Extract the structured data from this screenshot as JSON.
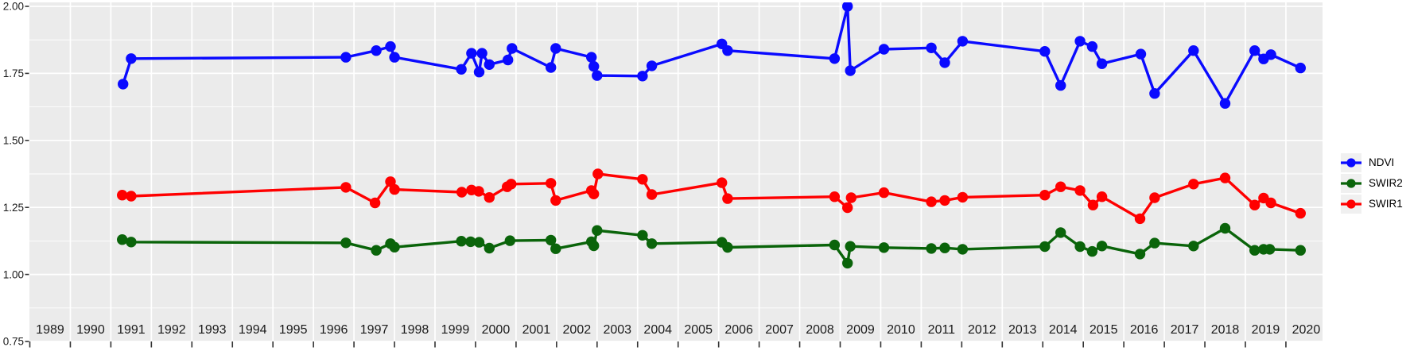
{
  "figure": {
    "title": "",
    "background_color": "#FFFFFF",
    "panel_background_color": "#EBEBEB",
    "grid_color": "#FFFFFF",
    "axis_text_color": "#1A1A1A",
    "tick_mark_color": "#333333",
    "legend_key_background": "#F0F0F0"
  },
  "legend": {
    "position": "right",
    "items": [
      {
        "label": "NDVI",
        "color": "#0A0AFF"
      },
      {
        "label": "SWIR2",
        "color": "#0A640A"
      },
      {
        "label": "SWIR1",
        "color": "#FF0000"
      }
    ]
  },
  "chart_data": {
    "type": "line",
    "title": "",
    "xlabel": "",
    "ylabel": "",
    "xlim": [
      1989,
      2021
    ],
    "ylim": [
      0.75,
      2.0
    ],
    "x_tick_labels": [
      "1989",
      "1990",
      "1991",
      "1992",
      "1993",
      "1994",
      "1995",
      "1996",
      "1997",
      "1998",
      "1999",
      "2000",
      "2001",
      "2002",
      "2003",
      "2004",
      "2005",
      "2006",
      "2007",
      "2008",
      "2009",
      "2010",
      "2011",
      "2012",
      "2013",
      "2014",
      "2015",
      "2016",
      "2017",
      "2018",
      "2019",
      "2020"
    ],
    "y_tick_labels": [
      "0.75",
      "1.00",
      "1.25",
      "1.50",
      "1.75",
      "2.00"
    ],
    "y_major_ticks": [
      0.75,
      1.0,
      1.25,
      1.5,
      1.75,
      2.0
    ],
    "y_minor_ticks": [
      0.875,
      1.125,
      1.375,
      1.625,
      1.875
    ],
    "grid": "horizontal major+minor white gridlines; vertical white gridlines at year boundaries; x labels centered within year bands",
    "legend_position": "right",
    "marker": "filled circle",
    "series": [
      {
        "name": "NDVI",
        "color": "#0A0AFF",
        "points": [
          [
            1991.3,
            1.71
          ],
          [
            1991.5,
            1.805
          ],
          [
            1996.8,
            1.81
          ],
          [
            1997.55,
            1.835
          ],
          [
            1997.9,
            1.85
          ],
          [
            1998.0,
            1.81
          ],
          [
            1999.65,
            1.765
          ],
          [
            1999.9,
            1.825
          ],
          [
            2000.09,
            1.755
          ],
          [
            2000.16,
            1.825
          ],
          [
            2000.34,
            1.783
          ],
          [
            2000.8,
            1.8
          ],
          [
            2000.9,
            1.843
          ],
          [
            2001.86,
            1.772
          ],
          [
            2001.98,
            1.843
          ],
          [
            2002.86,
            1.81
          ],
          [
            2002.92,
            1.776
          ],
          [
            2003.0,
            1.742
          ],
          [
            2004.12,
            1.74
          ],
          [
            2004.35,
            1.778
          ],
          [
            2006.08,
            1.86
          ],
          [
            2006.22,
            1.835
          ],
          [
            2008.86,
            1.805
          ],
          [
            2009.18,
            2.0
          ],
          [
            2009.25,
            1.76
          ],
          [
            2010.08,
            1.84
          ],
          [
            2011.25,
            1.845
          ],
          [
            2011.58,
            1.79
          ],
          [
            2012.02,
            1.87
          ],
          [
            2014.05,
            1.832
          ],
          [
            2014.44,
            1.705
          ],
          [
            2014.92,
            1.87
          ],
          [
            2015.22,
            1.85
          ],
          [
            2015.46,
            1.786
          ],
          [
            2016.42,
            1.822
          ],
          [
            2016.76,
            1.675
          ],
          [
            2017.72,
            1.835
          ],
          [
            2018.5,
            1.638
          ],
          [
            2019.23,
            1.835
          ],
          [
            2019.45,
            1.804
          ],
          [
            2019.63,
            1.82
          ],
          [
            2020.36,
            1.77
          ]
        ]
      },
      {
        "name": "SWIR2",
        "color": "#0A640A",
        "points": [
          [
            1991.28,
            1.13
          ],
          [
            1991.5,
            1.121
          ],
          [
            1996.8,
            1.118
          ],
          [
            1997.55,
            1.09
          ],
          [
            1997.9,
            1.115
          ],
          [
            1998.0,
            1.102
          ],
          [
            1999.65,
            1.124
          ],
          [
            1999.88,
            1.122
          ],
          [
            2000.09,
            1.12
          ],
          [
            2000.34,
            1.098
          ],
          [
            2000.85,
            1.126
          ],
          [
            2001.86,
            1.128
          ],
          [
            2001.98,
            1.096
          ],
          [
            2002.86,
            1.122
          ],
          [
            2002.92,
            1.107
          ],
          [
            2003.0,
            1.164
          ],
          [
            2004.12,
            1.146
          ],
          [
            2004.35,
            1.115
          ],
          [
            2006.08,
            1.12
          ],
          [
            2006.22,
            1.101
          ],
          [
            2008.86,
            1.11
          ],
          [
            2009.18,
            1.042
          ],
          [
            2009.25,
            1.105
          ],
          [
            2010.08,
            1.1
          ],
          [
            2011.25,
            1.097
          ],
          [
            2011.58,
            1.099
          ],
          [
            2012.02,
            1.094
          ],
          [
            2014.05,
            1.104
          ],
          [
            2014.44,
            1.156
          ],
          [
            2014.92,
            1.104
          ],
          [
            2015.22,
            1.086
          ],
          [
            2015.46,
            1.106
          ],
          [
            2016.4,
            1.076
          ],
          [
            2016.76,
            1.117
          ],
          [
            2017.72,
            1.106
          ],
          [
            2018.5,
            1.172
          ],
          [
            2019.23,
            1.09
          ],
          [
            2019.45,
            1.094
          ],
          [
            2019.6,
            1.094
          ],
          [
            2020.36,
            1.09
          ]
        ]
      },
      {
        "name": "SWIR1",
        "color": "#FF0000",
        "points": [
          [
            1991.28,
            1.296
          ],
          [
            1991.5,
            1.292
          ],
          [
            1996.8,
            1.325
          ],
          [
            1997.52,
            1.267
          ],
          [
            1997.9,
            1.346
          ],
          [
            1998.0,
            1.317
          ],
          [
            1999.66,
            1.307
          ],
          [
            1999.9,
            1.315
          ],
          [
            2000.08,
            1.31
          ],
          [
            2000.34,
            1.287
          ],
          [
            2000.78,
            1.327
          ],
          [
            2000.88,
            1.337
          ],
          [
            2001.86,
            1.34
          ],
          [
            2001.98,
            1.276
          ],
          [
            2002.86,
            1.313
          ],
          [
            2002.92,
            1.3
          ],
          [
            2003.02,
            1.375
          ],
          [
            2004.12,
            1.355
          ],
          [
            2004.35,
            1.298
          ],
          [
            2006.08,
            1.342
          ],
          [
            2006.22,
            1.283
          ],
          [
            2008.86,
            1.29
          ],
          [
            2009.18,
            1.249
          ],
          [
            2009.27,
            1.286
          ],
          [
            2010.08,
            1.305
          ],
          [
            2011.25,
            1.271
          ],
          [
            2011.58,
            1.276
          ],
          [
            2012.02,
            1.288
          ],
          [
            2014.05,
            1.296
          ],
          [
            2014.44,
            1.327
          ],
          [
            2014.92,
            1.313
          ],
          [
            2015.24,
            1.259
          ],
          [
            2015.46,
            1.29
          ],
          [
            2016.4,
            1.208
          ],
          [
            2016.76,
            1.286
          ],
          [
            2017.72,
            1.337
          ],
          [
            2018.5,
            1.36
          ],
          [
            2019.23,
            1.259
          ],
          [
            2019.45,
            1.285
          ],
          [
            2019.63,
            1.267
          ],
          [
            2020.36,
            1.228
          ]
        ]
      }
    ]
  }
}
